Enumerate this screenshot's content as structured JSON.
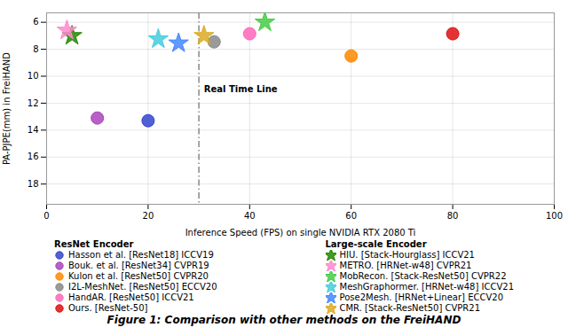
{
  "chart_data": {
    "type": "scatter",
    "caption": "Figure 1: Comparison with other methods on the FreiHAND",
    "xlabel": "Inference Speed (FPS) on single NVIDIA RTX 2080 Ti",
    "ylabel": "PA-PJPE(mm) in FreiHAND",
    "xlim": [
      0,
      100
    ],
    "ylim": [
      19.5,
      5.3
    ],
    "xticks": [
      0,
      20,
      40,
      60,
      80,
      100
    ],
    "yticks": [
      6,
      8,
      10,
      12,
      14,
      16,
      18
    ],
    "grid": true,
    "legend": "bottom",
    "reference_lines": [
      {
        "x": 30,
        "line_style": "dashdot"
      }
    ],
    "annotations": [
      {
        "text": "Real Time Line",
        "x": 31,
        "y": 11.2
      }
    ],
    "groups": [
      {
        "name": "ResNet Encoder",
        "marker": "circle",
        "series": [
          {
            "name": "Hasson et al. [ResNet18] ICCV19",
            "color": "#3344cc",
            "x": [
              20
            ],
            "values": [
              13.3
            ]
          },
          {
            "name": "Bouk. et al. [ResNet34] CVPR19",
            "color": "#aa44bb",
            "x": [
              10
            ],
            "values": [
              13.1
            ]
          },
          {
            "name": "Kulon et al. [ResNet50] CVPR20",
            "color": "#ff8800",
            "x": [
              60
            ],
            "values": [
              8.5
            ]
          },
          {
            "name": "I2L-MeshNet. [ResNet50] ECCV20",
            "color": "#888888",
            "x": [
              33
            ],
            "values": [
              7.45
            ]
          },
          {
            "name": "HandAR. [ResNet50] ICCV21",
            "color": "#ff66bb",
            "x": [
              40
            ],
            "values": [
              6.85
            ]
          },
          {
            "name": "Ours. [ResNet-50]",
            "color": "#dd1111",
            "x": [
              80
            ],
            "values": [
              6.85
            ]
          }
        ]
      },
      {
        "name": "Large-scale Encoder",
        "marker": "star",
        "series": [
          {
            "name": "HIU. [Stack-Hourglass] ICCV21",
            "color": "#228800",
            "x": [
              5
            ],
            "values": [
              7.0
            ]
          },
          {
            "name": "METRO. [HRNet-w48] CVPR21",
            "color": "#ff88cc",
            "x": [
              4
            ],
            "values": [
              6.6
            ]
          },
          {
            "name": "MobRecon. [Stack-ResNet50] CVPR22",
            "color": "#44cc44",
            "x": [
              43
            ],
            "values": [
              6.0
            ]
          },
          {
            "name": "MeshGraphormer. [HRNet-w48] ICCV21",
            "color": "#44ccdd",
            "x": [
              22
            ],
            "values": [
              7.25
            ]
          },
          {
            "name": "Pose2Mesh. [HRNet+Linear] ECCV20",
            "color": "#4488ff",
            "x": [
              26
            ],
            "values": [
              7.55
            ]
          },
          {
            "name": "CMR. [Stack-ResNet50] CVPR21",
            "color": "#ddaa22",
            "x": [
              31
            ],
            "values": [
              7.0
            ]
          }
        ]
      }
    ]
  }
}
